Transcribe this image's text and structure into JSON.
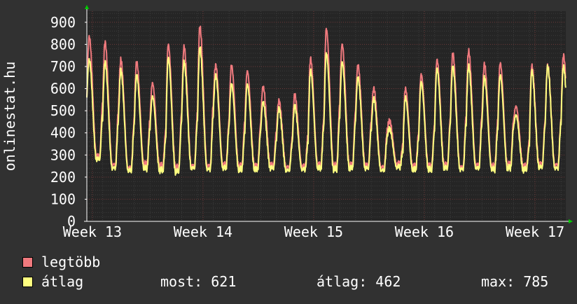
{
  "chart_data": {
    "type": "line",
    "ylabel": "onlinestat.hu",
    "ylim": [
      0,
      950
    ],
    "yticks": [
      "0",
      "100",
      "200",
      "300",
      "400",
      "500",
      "600",
      "700",
      "800",
      "900"
    ],
    "ytick_values": [
      0,
      100,
      200,
      300,
      400,
      500,
      600,
      700,
      800,
      900
    ],
    "xlabels": [
      "Week 13",
      "Week 14",
      "Week 15",
      "Week 16",
      "Week 17"
    ],
    "days_total": 30.3,
    "week_start_days": [
      0.35,
      7.35,
      14.35,
      21.35,
      28.35
    ],
    "grid": true,
    "colors": {
      "background": "#313131",
      "plot_bg": "#252525",
      "grid_minor": "#3c3c3c",
      "grid_major": "#6e3a3a",
      "axis": "#ffffff",
      "series_max": "#f07a7e",
      "series_avg": "#ffff80"
    },
    "series": [
      {
        "name": "legtöbb",
        "color": "#f07a7e",
        "daily_peaks": [
          835,
          810,
          730,
          720,
          625,
          800,
          790,
          880,
          705,
          705,
          680,
          610,
          545,
          570,
          735,
          870,
          800,
          705,
          600,
          455,
          600,
          665,
          730,
          760,
          770,
          710,
          715,
          520,
          705,
          705,
          750,
          780,
          710,
          720
        ],
        "daily_troughs": [
          290,
          250,
          235,
          255,
          245,
          240,
          245,
          245,
          250,
          245,
          245,
          250,
          240,
          245,
          250,
          245,
          250,
          250,
          240,
          255,
          245,
          245,
          250,
          240,
          250,
          245,
          250,
          245,
          255,
          250,
          250,
          245,
          250,
          250
        ]
      },
      {
        "name": "átlag",
        "color": "#ffff80",
        "daily_peaks": [
          730,
          720,
          680,
          660,
          565,
          740,
          720,
          785,
          660,
          620,
          620,
          540,
          510,
          520,
          680,
          760,
          720,
          650,
          555,
          420,
          560,
          630,
          690,
          700,
          700,
          650,
          660,
          480,
          680,
          700,
          700,
          740,
          700,
          680
        ],
        "daily_troughs": [
          275,
          235,
          225,
          235,
          225,
          220,
          235,
          230,
          235,
          230,
          230,
          235,
          225,
          230,
          235,
          230,
          235,
          235,
          225,
          240,
          230,
          230,
          235,
          230,
          235,
          230,
          235,
          230,
          240,
          235,
          235,
          230,
          235,
          235
        ]
      }
    ]
  },
  "legend": {
    "series1_label": "legtöbb",
    "series2_label": "átlag",
    "now_label": "most: 621",
    "avg_label": "átlag: 462",
    "max_label": "max: 785"
  }
}
